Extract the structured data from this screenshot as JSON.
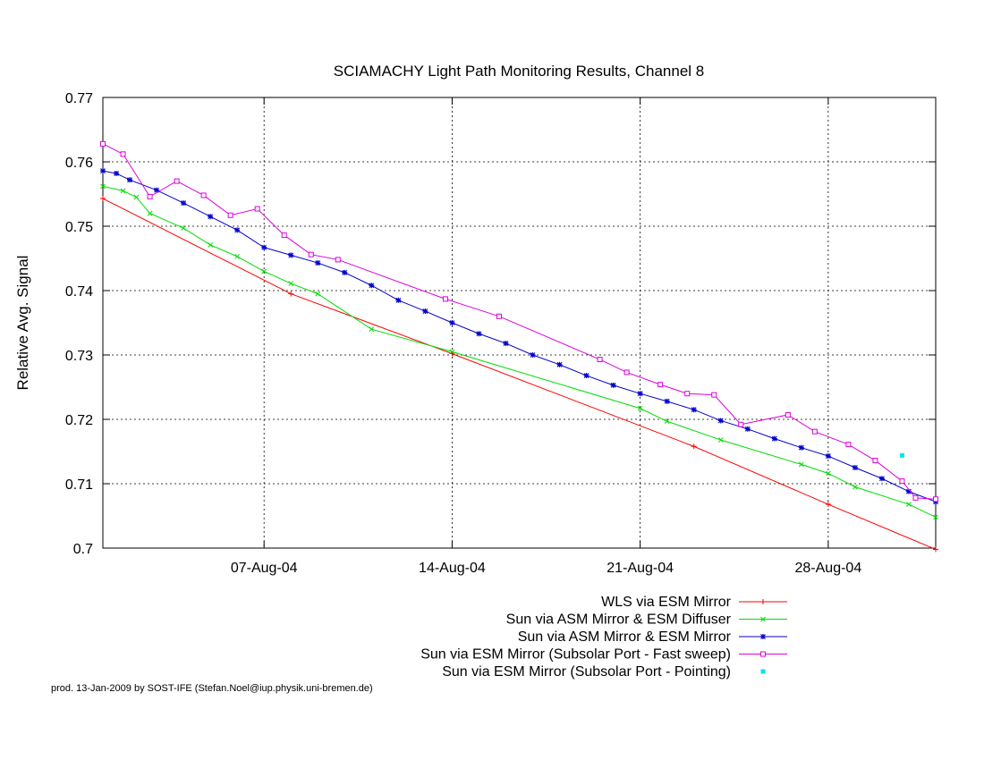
{
  "credit": "prod. 13-Jan-2009 by SOST-IFE (Stefan.Noel@iup.physik.uni-bremen.de)",
  "chart_data": {
    "type": "line",
    "title": "SCIAMACHY Light Path Monitoring Results, Channel 8",
    "xlabel": "",
    "ylabel": "Relative Avg. Signal",
    "xlim": [
      "2004-08-01",
      "2004-09-01"
    ],
    "ylim": [
      0.7,
      0.77
    ],
    "grid": true,
    "legend_position": "bottom",
    "x_ticks": [
      {
        "x": "2004-08-07",
        "label": "07-Aug-04"
      },
      {
        "x": "2004-08-14",
        "label": "14-Aug-04"
      },
      {
        "x": "2004-08-21",
        "label": "21-Aug-04"
      },
      {
        "x": "2004-08-28",
        "label": "28-Aug-04"
      }
    ],
    "y_ticks": [
      {
        "y": 0.7,
        "label": "0.7"
      },
      {
        "y": 0.71,
        "label": "0.71"
      },
      {
        "y": 0.72,
        "label": "0.72"
      },
      {
        "y": 0.73,
        "label": "0.73"
      },
      {
        "y": 0.74,
        "label": "0.74"
      },
      {
        "y": 0.75,
        "label": "0.75"
      },
      {
        "y": 0.76,
        "label": "0.76"
      },
      {
        "y": 0.77,
        "label": "0.77"
      }
    ],
    "series": [
      {
        "name": "WLS via ESM Mirror",
        "color": "#ff0000",
        "marker": "plus",
        "points": [
          [
            "2004-08-01",
            0.7543
          ],
          [
            "2004-08-08",
            0.7395
          ],
          [
            "2004-08-14",
            0.7302
          ],
          [
            "2004-08-23",
            0.7158
          ],
          [
            "2004-08-28",
            0.7068
          ],
          [
            "2004-09-01",
            0.6998
          ]
        ]
      },
      {
        "name": "Sun via ASM Mirror & ESM Diffuser",
        "color": "#00dd00",
        "marker": "cross",
        "points": [
          [
            "2004-08-01",
            0.7562
          ],
          [
            "2004-08-01 18:00",
            0.7555
          ],
          [
            "2004-08-02 06:00",
            0.7545
          ],
          [
            "2004-08-02 18:00",
            0.752
          ],
          [
            "2004-08-04",
            0.7497
          ],
          [
            "2004-08-05",
            0.7471
          ],
          [
            "2004-08-06",
            0.7453
          ],
          [
            "2004-08-07",
            0.743
          ],
          [
            "2004-08-08",
            0.7411
          ],
          [
            "2004-08-09",
            0.7395
          ],
          [
            "2004-08-11",
            0.734
          ],
          [
            "2004-08-14",
            0.7305
          ],
          [
            "2004-08-21",
            0.7217
          ],
          [
            "2004-08-22",
            0.7197
          ],
          [
            "2004-08-24",
            0.7168
          ],
          [
            "2004-08-27",
            0.713
          ],
          [
            "2004-08-28",
            0.7116
          ],
          [
            "2004-08-29",
            0.7095
          ],
          [
            "2004-08-31",
            0.7068
          ],
          [
            "2004-09-01",
            0.7048
          ]
        ]
      },
      {
        "name": "Sun via ASM Mirror & ESM Mirror",
        "color": "#0000cc",
        "marker": "star",
        "points": [
          [
            "2004-08-01",
            0.7586
          ],
          [
            "2004-08-01 12:00",
            0.7582
          ],
          [
            "2004-08-02",
            0.7572
          ],
          [
            "2004-08-03",
            0.7556
          ],
          [
            "2004-08-04",
            0.7536
          ],
          [
            "2004-08-05",
            0.7515
          ],
          [
            "2004-08-06",
            0.7494
          ],
          [
            "2004-08-07",
            0.7467
          ],
          [
            "2004-08-08",
            0.7455
          ],
          [
            "2004-08-09",
            0.7443
          ],
          [
            "2004-08-10",
            0.7428
          ],
          [
            "2004-08-11",
            0.7408
          ],
          [
            "2004-08-12",
            0.7385
          ],
          [
            "2004-08-13",
            0.7368
          ],
          [
            "2004-08-14",
            0.735
          ],
          [
            "2004-08-15",
            0.7333
          ],
          [
            "2004-08-16",
            0.7318
          ],
          [
            "2004-08-17",
            0.73
          ],
          [
            "2004-08-18",
            0.7285
          ],
          [
            "2004-08-19",
            0.7268
          ],
          [
            "2004-08-20",
            0.7253
          ],
          [
            "2004-08-21",
            0.724
          ],
          [
            "2004-08-22",
            0.7228
          ],
          [
            "2004-08-23",
            0.7215
          ],
          [
            "2004-08-24",
            0.7198
          ],
          [
            "2004-08-25",
            0.7185
          ],
          [
            "2004-08-26",
            0.717
          ],
          [
            "2004-08-27",
            0.7156
          ],
          [
            "2004-08-28",
            0.7143
          ],
          [
            "2004-08-29",
            0.7125
          ],
          [
            "2004-08-30",
            0.7108
          ],
          [
            "2004-08-31",
            0.7088
          ],
          [
            "2004-09-01",
            0.7072
          ]
        ]
      },
      {
        "name": "Sun via ESM Mirror (Subsolar Port - Fast sweep)",
        "color": "#dd00dd",
        "marker": "square",
        "points": [
          [
            "2004-08-01",
            0.7628
          ],
          [
            "2004-08-01 18:00",
            0.7612
          ],
          [
            "2004-08-02 18:00",
            0.7546
          ],
          [
            "2004-08-03 18:00",
            0.757
          ],
          [
            "2004-08-04 18:00",
            0.7548
          ],
          [
            "2004-08-05 18:00",
            0.7517
          ],
          [
            "2004-08-06 18:00",
            0.7527
          ],
          [
            "2004-08-07 18:00",
            0.7486
          ],
          [
            "2004-08-08 18:00",
            0.7456
          ],
          [
            "2004-08-09 18:00",
            0.7448
          ],
          [
            "2004-08-13 18:00",
            0.7387
          ],
          [
            "2004-08-15 18:00",
            0.736
          ],
          [
            "2004-08-19 12:00",
            0.7293
          ],
          [
            "2004-08-20 12:00",
            0.7273
          ],
          [
            "2004-08-21 18:00",
            0.7254
          ],
          [
            "2004-08-22 18:00",
            0.724
          ],
          [
            "2004-08-23 18:00",
            0.7238
          ],
          [
            "2004-08-24 18:00",
            0.7192
          ],
          [
            "2004-08-26 12:00",
            0.7207
          ],
          [
            "2004-08-27 12:00",
            0.7181
          ],
          [
            "2004-08-28 18:00",
            0.7161
          ],
          [
            "2004-08-29 18:00",
            0.7136
          ],
          [
            "2004-08-30 18:00",
            0.7104
          ],
          [
            "2004-08-31 06:00",
            0.7078
          ],
          [
            "2004-09-01",
            0.7076
          ]
        ]
      },
      {
        "name": "Sun via ESM Mirror (Subsolar Port - Pointing)",
        "color": "#00e5ee",
        "marker": "dot",
        "points": [
          [
            "2004-08-30 18:00",
            0.7144
          ]
        ]
      }
    ]
  }
}
